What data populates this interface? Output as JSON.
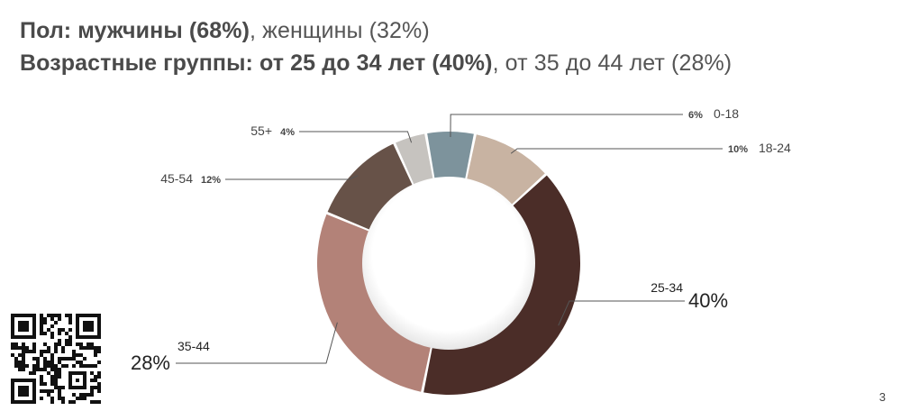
{
  "header": {
    "gender_label": "Пол:",
    "gender_male": "мужчины (68%)",
    "gender_female": ", женщины (32%)",
    "age_label": "Возрастные группы:",
    "age_top1": "от 25 до 34 лет (40%)",
    "age_top2": ", от 35 до 44 лет (28%)"
  },
  "page_number": "3",
  "chart_data": {
    "type": "pie",
    "donut": true,
    "categories": [
      "0-18",
      "18-24",
      "25-34",
      "35-44",
      "45-54",
      "55+"
    ],
    "values": [
      6,
      10,
      40,
      28,
      12,
      4
    ],
    "value_labels": [
      "6%",
      "10%",
      "40%",
      "28%",
      "12%",
      "4%"
    ],
    "colors": [
      "#7d939c",
      "#c8b3a2",
      "#4b2d28",
      "#b38278",
      "#675248",
      "#c6c3bf"
    ],
    "legend": "callout-labels"
  }
}
